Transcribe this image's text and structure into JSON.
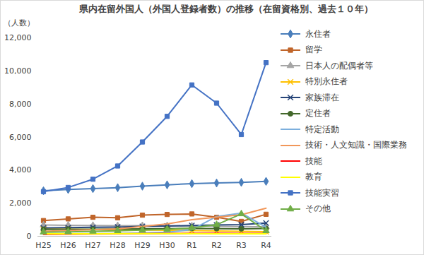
{
  "chart_data": {
    "type": "line",
    "title": "県内在留外国人（外国人登録者数）の推移（在留資格別、過去１０年）",
    "y_label": "（人数）",
    "categories": [
      "H25",
      "H26",
      "H27",
      "H28",
      "H29",
      "H30",
      "R1",
      "R2",
      "R3",
      "R4"
    ],
    "ylim": [
      0,
      12000
    ],
    "yticks": [
      0,
      {
        "value": 2000,
        "label": "2,000"
      },
      {
        "value": 4000,
        "label": "4,000"
      },
      {
        "value": 6000,
        "label": "6,000"
      },
      {
        "value": 8000,
        "label": "8,000"
      },
      {
        "value": 10000,
        "label": "10,000"
      },
      {
        "value": 12000,
        "label": "12,000"
      }
    ],
    "grid": false,
    "legend": "right",
    "series": [
      {
        "name": "永住者",
        "color": "#4a7ebb",
        "marker": "diamond",
        "values": [
          2750,
          2830,
          2880,
          2940,
          3030,
          3110,
          3180,
          3220,
          3260,
          3320
        ]
      },
      {
        "name": "留学",
        "color": "#c0652a",
        "marker": "square",
        "values": [
          950,
          1050,
          1150,
          1120,
          1280,
          1320,
          1350,
          1150,
          900,
          1330
        ]
      },
      {
        "name": "日本人の配偶者等",
        "color": "#a5a5a5",
        "marker": "triangle",
        "values": [
          680,
          660,
          650,
          640,
          640,
          630,
          620,
          600,
          580,
          580
        ]
      },
      {
        "name": "特別永住者",
        "color": "#ffc000",
        "marker": "x",
        "values": [
          450,
          430,
          410,
          400,
          380,
          360,
          340,
          320,
          300,
          280
        ]
      },
      {
        "name": "家族滞在",
        "color": "#264478",
        "marker": "x",
        "values": [
          500,
          520,
          540,
          560,
          600,
          620,
          650,
          680,
          700,
          800
        ]
      },
      {
        "name": "定住者",
        "color": "#43682b",
        "marker": "circle",
        "values": [
          420,
          430,
          430,
          440,
          450,
          460,
          470,
          460,
          450,
          470
        ]
      },
      {
        "name": "特定活動",
        "color": "#7cafdd",
        "marker": "none",
        "values": [
          150,
          150,
          160,
          170,
          200,
          250,
          400,
          1200,
          1400,
          550
        ]
      },
      {
        "name": "技術・人文知識・国際業務",
        "color": "#f1975a",
        "marker": "none",
        "values": [
          300,
          350,
          400,
          450,
          600,
          750,
          1000,
          1150,
          1300,
          1700
        ]
      },
      {
        "name": "技能",
        "color": "#ff0000",
        "marker": "none",
        "values": [
          120,
          130,
          140,
          150,
          160,
          170,
          180,
          180,
          170,
          170
        ]
      },
      {
        "name": "教育",
        "color": "#ffff00",
        "marker": "none",
        "values": [
          150,
          150,
          150,
          160,
          160,
          160,
          160,
          150,
          150,
          150
        ]
      },
      {
        "name": "技能実習",
        "color": "#4472c4",
        "marker": "square",
        "values": [
          2700,
          2950,
          3450,
          4250,
          5700,
          7250,
          9150,
          8050,
          6150,
          10500
        ]
      },
      {
        "name": "その他",
        "color": "#70ad47",
        "marker": "triangle",
        "values": [
          250,
          270,
          300,
          330,
          370,
          420,
          500,
          700,
          1350,
          330
        ]
      }
    ]
  }
}
